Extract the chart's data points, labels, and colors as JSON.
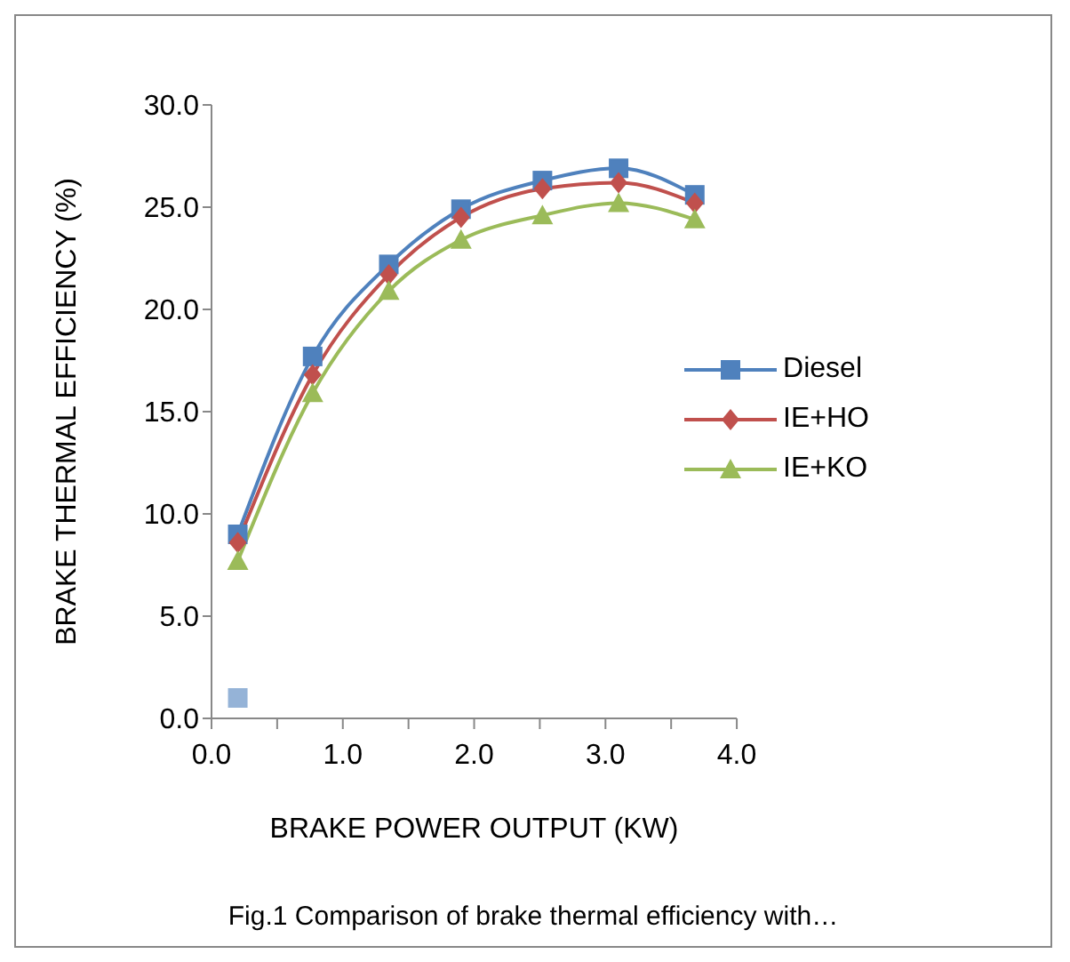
{
  "chart_data": {
    "type": "line",
    "xlabel": "BRAKE POWER OUTPUT (KW)",
    "ylabel": "BRAKE THERMAL EFFICIENCY (%)",
    "x": [
      0.2,
      0.77,
      1.35,
      1.9,
      2.52,
      3.1,
      3.68
    ],
    "series": [
      {
        "name": "Diesel",
        "color": "#4f81bd",
        "marker": "square",
        "values": [
          9.0,
          17.7,
          22.2,
          24.9,
          26.3,
          26.9,
          25.6
        ]
      },
      {
        "name": "IE+HO",
        "color": "#c0504d",
        "marker": "diamond",
        "values": [
          8.6,
          16.8,
          21.7,
          24.5,
          25.9,
          26.2,
          25.2
        ]
      },
      {
        "name": "IE+KO",
        "color": "#9bbb59",
        "marker": "triangle",
        "values": [
          7.7,
          15.9,
          20.9,
          23.4,
          24.6,
          25.2,
          24.4
        ]
      },
      {
        "type": "scatter",
        "color": "#95b3d7",
        "marker": "square",
        "x": [
          0.2
        ],
        "values": [
          1.0
        ]
      }
    ],
    "xlim": [
      0,
      4
    ],
    "xticks": [
      {
        "value": 0,
        "label": "0.0"
      },
      {
        "value": 0.5,
        "label": null
      },
      {
        "value": 1,
        "label": "1.0"
      },
      {
        "value": 1.5,
        "label": null
      },
      {
        "value": 2,
        "label": "2.0"
      },
      {
        "value": 2.5,
        "label": null
      },
      {
        "value": 3,
        "label": "3.0"
      },
      {
        "value": 3.5,
        "label": null
      },
      {
        "value": 4,
        "label": "4.0"
      }
    ],
    "ylim": [
      0,
      30
    ],
    "yticks": [
      {
        "value": 0,
        "label": "0.0"
      },
      {
        "value": 5,
        "label": "5.0"
      },
      {
        "value": 10,
        "label": "10.0"
      },
      {
        "value": 15,
        "label": "15.0"
      },
      {
        "value": 20,
        "label": "20.0"
      },
      {
        "value": 25,
        "label": "25.0"
      },
      {
        "value": 30,
        "label": "30.0"
      }
    ],
    "grid": false,
    "legend": "right",
    "line_style": "solid",
    "annotations": [
      "Fig.1 Comparison of brake thermal efficiency with…"
    ]
  }
}
